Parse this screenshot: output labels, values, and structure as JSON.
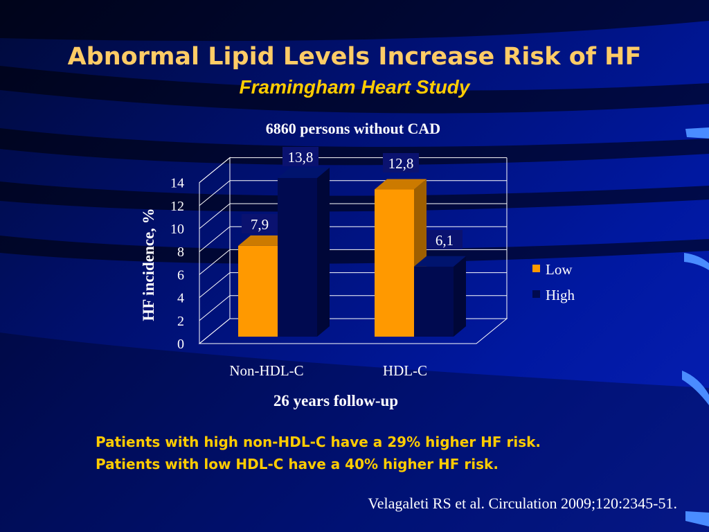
{
  "slide": {
    "title": "Abnormal Lipid Levels Increase Risk of HF",
    "subtitle": "Framingham Heart Study",
    "notes": [
      "Patients with high non-HDL-C have a 29% higher HF risk.",
      "Patients with low HDL-C have a 40% higher HF risk."
    ],
    "citation": "Velagaleti RS et al. Circulation 2009;120:2345-51."
  },
  "colors": {
    "low": "#ff9900",
    "high": "#000a50",
    "text": "#ffffff",
    "title": "#ffcc66",
    "accent": "#ffcc00"
  },
  "chart_data": {
    "type": "bar",
    "title": "6860 persons without CAD",
    "xlabel": "26 years follow-up",
    "ylabel": "HF incidence, %",
    "categories": [
      "Non-HDL-C",
      "HDL-C"
    ],
    "series": [
      {
        "name": "Low",
        "values": [
          7.9,
          12.8
        ],
        "labels": [
          "7,9",
          "12,8"
        ]
      },
      {
        "name": "High",
        "values": [
          13.8,
          6.1
        ],
        "labels": [
          "13,8",
          "6,1"
        ]
      }
    ],
    "ylim": [
      0,
      14
    ],
    "yticks": [
      "0",
      "2",
      "4",
      "6",
      "8",
      "10",
      "12",
      "14"
    ],
    "grid": true,
    "legend": "right",
    "style": "3d"
  }
}
